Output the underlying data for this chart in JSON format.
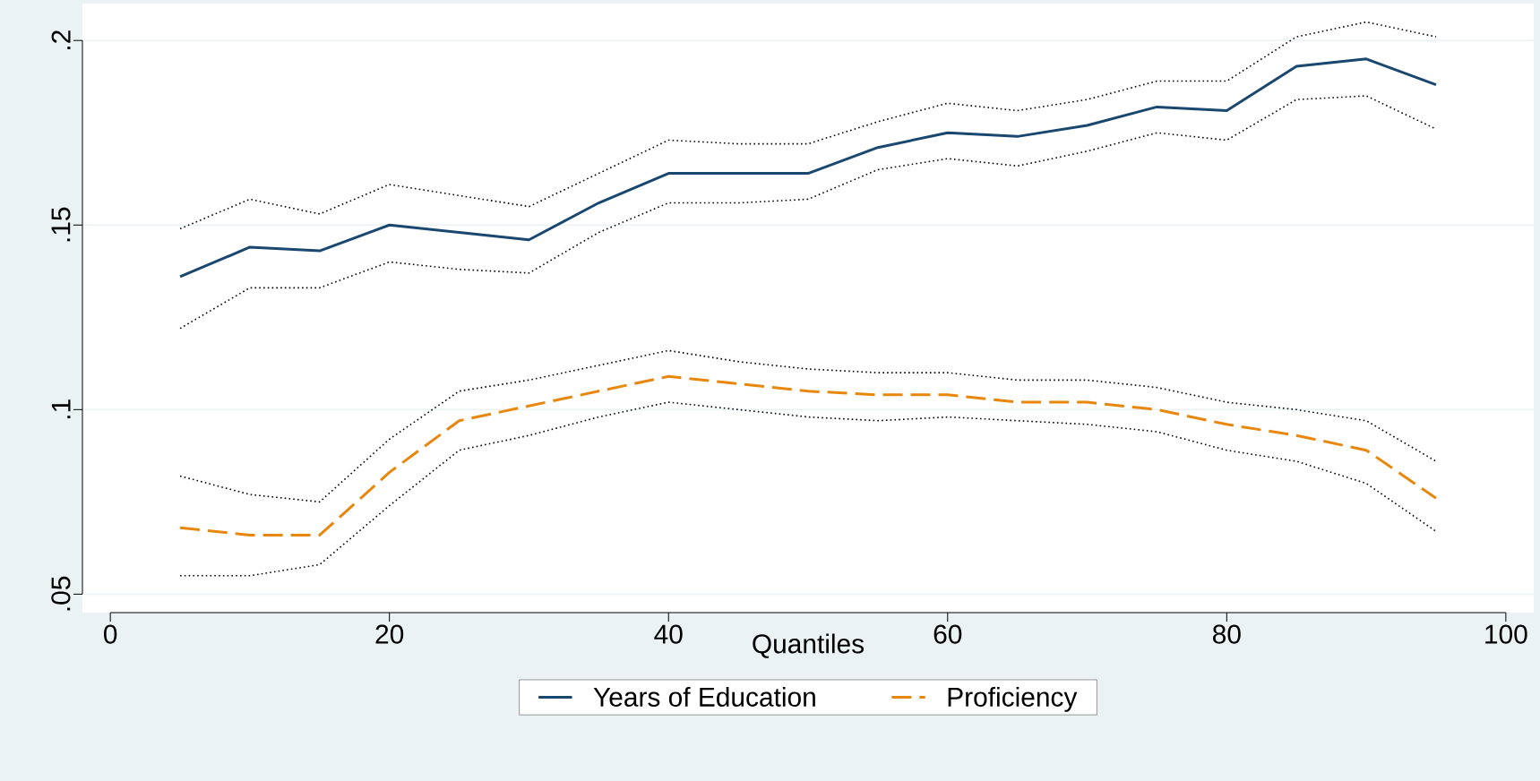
{
  "chart_data": {
    "type": "line",
    "xlabel": "Quantiles",
    "x": [
      5,
      10,
      15,
      20,
      25,
      30,
      35,
      40,
      45,
      50,
      55,
      60,
      65,
      70,
      75,
      80,
      85,
      90,
      95
    ],
    "series": [
      {
        "name": "Years of Education",
        "color": "#1a476f",
        "line_style": "solid",
        "values": [
          0.136,
          0.144,
          0.143,
          0.15,
          0.148,
          0.146,
          0.156,
          0.164,
          0.164,
          0.164,
          0.171,
          0.175,
          0.174,
          0.177,
          0.182,
          0.181,
          0.193,
          0.195,
          0.188
        ]
      },
      {
        "name": "Proficiency",
        "color": "#e8870e",
        "line_style": "dashed",
        "values": [
          0.068,
          0.066,
          0.066,
          0.083,
          0.097,
          0.101,
          0.105,
          0.109,
          0.107,
          0.105,
          0.104,
          0.104,
          0.102,
          0.102,
          0.1,
          0.096,
          0.093,
          0.089,
          0.076
        ]
      },
      {
        "color": "#000000",
        "line_style": "dotted",
        "values": [
          0.122,
          0.133,
          0.133,
          0.14,
          0.138,
          0.137,
          0.148,
          0.156,
          0.156,
          0.157,
          0.165,
          0.168,
          0.166,
          0.17,
          0.175,
          0.173,
          0.184,
          0.185,
          0.176
        ]
      },
      {
        "color": "#000000",
        "line_style": "dotted",
        "values": [
          0.149,
          0.157,
          0.153,
          0.161,
          0.158,
          0.155,
          0.164,
          0.173,
          0.172,
          0.172,
          0.178,
          0.183,
          0.181,
          0.184,
          0.189,
          0.189,
          0.201,
          0.205,
          0.201
        ]
      },
      {
        "color": "#000000",
        "line_style": "dotted",
        "values": [
          0.055,
          0.055,
          0.058,
          0.074,
          0.089,
          0.093,
          0.098,
          0.102,
          0.1,
          0.098,
          0.097,
          0.098,
          0.097,
          0.096,
          0.094,
          0.089,
          0.086,
          0.08,
          0.067
        ]
      },
      {
        "color": "#000000",
        "line_style": "dotted",
        "values": [
          0.082,
          0.077,
          0.075,
          0.092,
          0.105,
          0.108,
          0.112,
          0.116,
          0.113,
          0.111,
          0.11,
          0.11,
          0.108,
          0.108,
          0.106,
          0.102,
          0.1,
          0.097,
          0.086
        ]
      }
    ],
    "xlim": [
      -2,
      102
    ],
    "xticks": [
      0,
      20,
      40,
      60,
      80,
      100
    ],
    "ylim": [
      0.045,
      0.21
    ],
    "yticks": [
      {
        "value": 0.05,
        "label": ".05"
      },
      {
        "value": 0.1,
        "label": ".1"
      },
      {
        "value": 0.15,
        "label": ".15"
      },
      {
        "value": 0.2,
        "label": ".2"
      }
    ],
    "grid": "y",
    "legend": "bottom"
  }
}
